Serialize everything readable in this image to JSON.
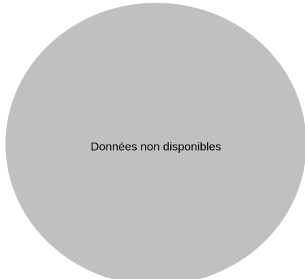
{
  "chart_data": {
    "type": "pie",
    "title": "",
    "categories": [],
    "values": [],
    "empty_message": "Données non disponibles",
    "empty_fill_color": "#c0c0c0",
    "text_color": "#000000",
    "background_color": "#ffffff"
  }
}
